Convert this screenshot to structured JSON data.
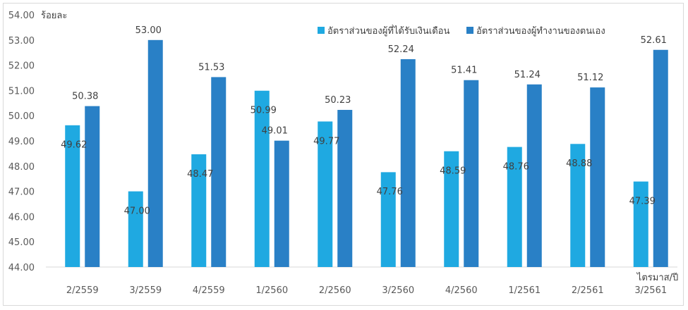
{
  "chart_data": {
    "type": "bar",
    "title": "",
    "ylabel": "ร้อยละ",
    "xlabel": "ไตรมาส/ปี",
    "ylim": [
      44,
      54
    ],
    "yticks": [
      "44.00",
      "45.00",
      "46.00",
      "47.00",
      "48.00",
      "49.00",
      "50.00",
      "51.00",
      "52.00",
      "53.00",
      "54.00"
    ],
    "grid": false,
    "legend_position": "top-right",
    "categories": [
      "2/2559",
      "3/2559",
      "4/2559",
      "1/2560",
      "2/2560",
      "3/2560",
      "4/2560",
      "1/2561",
      "2/2561",
      "3/2561"
    ],
    "series": [
      {
        "name": "อัตราส่วนของผู้ที่ได้รับเงินเดือน",
        "color": "#1FA9E1",
        "values": [
          49.62,
          47.0,
          48.47,
          50.99,
          49.77,
          47.76,
          48.59,
          48.76,
          48.88,
          47.39
        ],
        "labels": [
          "49.62",
          "47.00",
          "48.47",
          "50.99",
          "49.77",
          "47.76",
          "48.59",
          "48.76",
          "48.88",
          "47.39"
        ]
      },
      {
        "name": "อัตราส่วนของผู้ทำงานของตนเอง",
        "color": "#2980C6",
        "values": [
          50.38,
          53.0,
          51.53,
          49.01,
          50.23,
          52.24,
          51.41,
          51.24,
          51.12,
          52.61
        ],
        "labels": [
          "50.38",
          "53.00",
          "51.53",
          "49.01",
          "50.23",
          "52.24",
          "51.41",
          "51.24",
          "51.12",
          "52.61"
        ]
      }
    ]
  }
}
